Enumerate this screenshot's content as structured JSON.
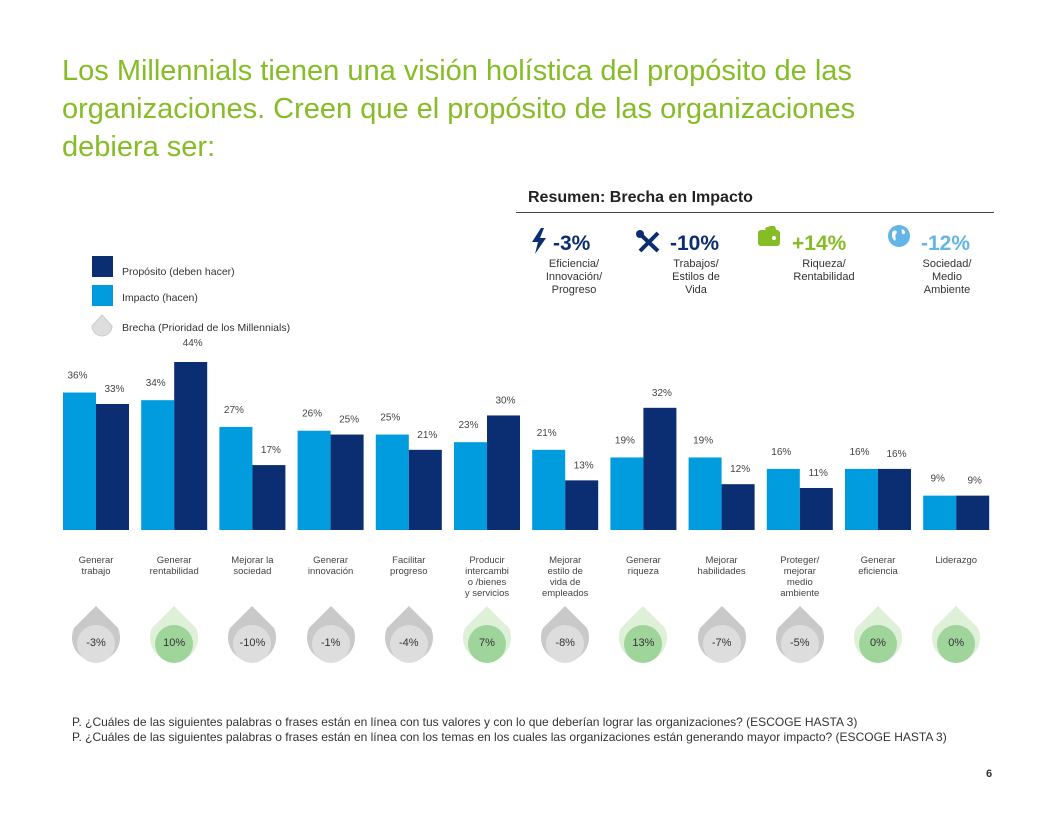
{
  "title": "Los Millennials tienen una visión holística del propósito de las organizaciones. Creen que el propósito de las organizaciones debiera ser:",
  "summary": {
    "heading": "Resumen: Brecha en Impacto",
    "items": [
      {
        "value": "-3%",
        "label": "Eficiencia/\nInnovación/\nProgreso",
        "icon": "lightning-icon",
        "color": "#0b2d71"
      },
      {
        "value": "-10%",
        "label": "Trabajos/\nEstilos de\nVida",
        "icon": "tools-icon",
        "color": "#0b2d71"
      },
      {
        "value": "+14%",
        "label": "Riqueza/\nRentabilidad",
        "icon": "wallet-icon",
        "color": "#86bc25"
      },
      {
        "value": "-12%",
        "label": "Sociedad/\nMedio\nAmbiente",
        "icon": "globe-icon",
        "color": "#62b5e5"
      }
    ]
  },
  "legend": {
    "proposito": "Propósito (deben hacer)",
    "impacto": "Impacto (hacen)",
    "brecha": "Brecha (Prioridad de los Millennials)"
  },
  "colors": {
    "proposito": "#0b2d71",
    "impacto": "#009cde",
    "gap_positive": "#9fd49a",
    "gap_negative": "#dddddd",
    "accent": "#86bc25"
  },
  "chart_data": {
    "type": "bar",
    "categories": [
      "Generar\ntrabajo",
      "Generar\nrentabilidad",
      "Mejorar la\nsociedad",
      "Generar\ninnovación",
      "Facilitar\nprogreso",
      "Producir\nintercambi\no /bienes\ny servicios",
      "Mejorar\nestilo de\nvida de\nempleados",
      "Generar\nriqueza",
      "Mejorar\nhabilidades",
      "Proteger/\nmejorar\nmedio\nambiente",
      "Generar\neficiencia",
      "Liderazgo"
    ],
    "series": [
      {
        "name": "Impacto (hacen)",
        "values": [
          36,
          34,
          27,
          26,
          25,
          23,
          21,
          19,
          19,
          16,
          16,
          9
        ]
      },
      {
        "name": "Propósito (deben hacer)",
        "values": [
          33,
          44,
          17,
          25,
          21,
          30,
          13,
          32,
          12,
          11,
          16,
          9
        ]
      }
    ],
    "value_labels_impacto": [
      "36%",
      "34%",
      "27%",
      "26%",
      "25%",
      "23%",
      "21%",
      "19%",
      "19%",
      "16%",
      "16%",
      "9%"
    ],
    "value_labels_proposito": [
      "33%",
      "44%",
      "17%",
      "25%",
      "21%",
      "30%",
      "13%",
      "32%",
      "12%",
      "11%",
      "16%",
      "9%"
    ],
    "gaps": [
      "-3%",
      "10%",
      "-10%",
      "-1%",
      "-4%",
      "7%",
      "-8%",
      "13%",
      "-7%",
      "-5%",
      "0%",
      "0%"
    ],
    "gap_positive": [
      false,
      true,
      false,
      false,
      false,
      true,
      false,
      true,
      false,
      false,
      true,
      true
    ],
    "ylim": [
      0,
      50
    ]
  },
  "footer": {
    "question1": "P. ¿Cuáles de las siguientes palabras o frases están en línea con tus valores y con lo que deberían lograr las organizaciones? (ESCOGE HASTA 3)",
    "question2": "P. ¿Cuáles de las siguientes palabras o frases están en línea con los temas en los cuales las organizaciones están generando mayor impacto? (ESCOGE HASTA 3)",
    "page_number": "6"
  }
}
